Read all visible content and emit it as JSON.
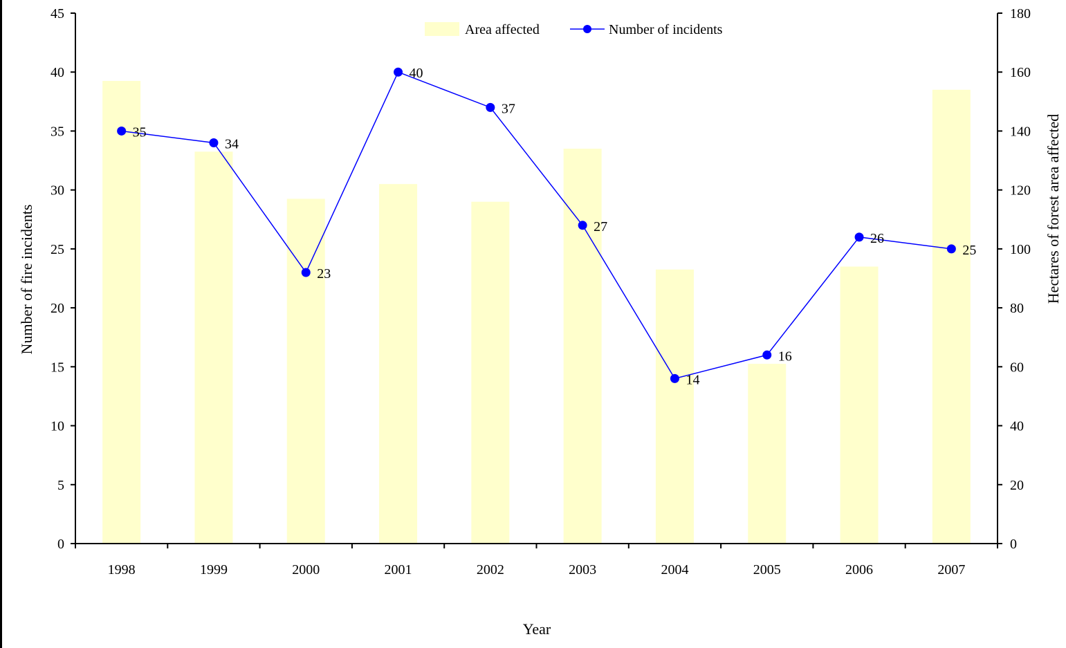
{
  "chart_data": {
    "type": "bar+line",
    "title": "",
    "xlabel": "Year",
    "ylabel_left": "Number of fire incidents",
    "ylabel_right": "Hectares of forest area affected",
    "categories": [
      "1998",
      "1999",
      "2000",
      "2001",
      "2002",
      "2003",
      "2004",
      "2005",
      "2006",
      "2007"
    ],
    "ylim_left": [
      0,
      45
    ],
    "yticks_left": [
      0,
      5,
      10,
      15,
      20,
      25,
      30,
      35,
      40,
      45
    ],
    "ylim_right": [
      0,
      180
    ],
    "yticks_right": [
      0,
      20,
      40,
      60,
      80,
      100,
      120,
      140,
      160,
      180
    ],
    "series": [
      {
        "name": "Area affected",
        "kind": "bar",
        "axis": "right",
        "color": "#FFFFCC",
        "values": [
          157,
          133,
          117,
          122,
          116,
          134,
          93,
          61,
          94,
          154
        ]
      },
      {
        "name": "Number of incidents",
        "kind": "line",
        "axis": "left",
        "color": "#0000FF",
        "values": [
          35,
          34,
          23,
          40,
          37,
          27,
          14,
          16,
          26,
          25
        ],
        "data_labels": [
          "35",
          "34",
          "23",
          "40",
          "37",
          "27",
          "14",
          "16",
          "26",
          "25"
        ]
      }
    ],
    "legend_position": "top-center",
    "grid": false
  }
}
